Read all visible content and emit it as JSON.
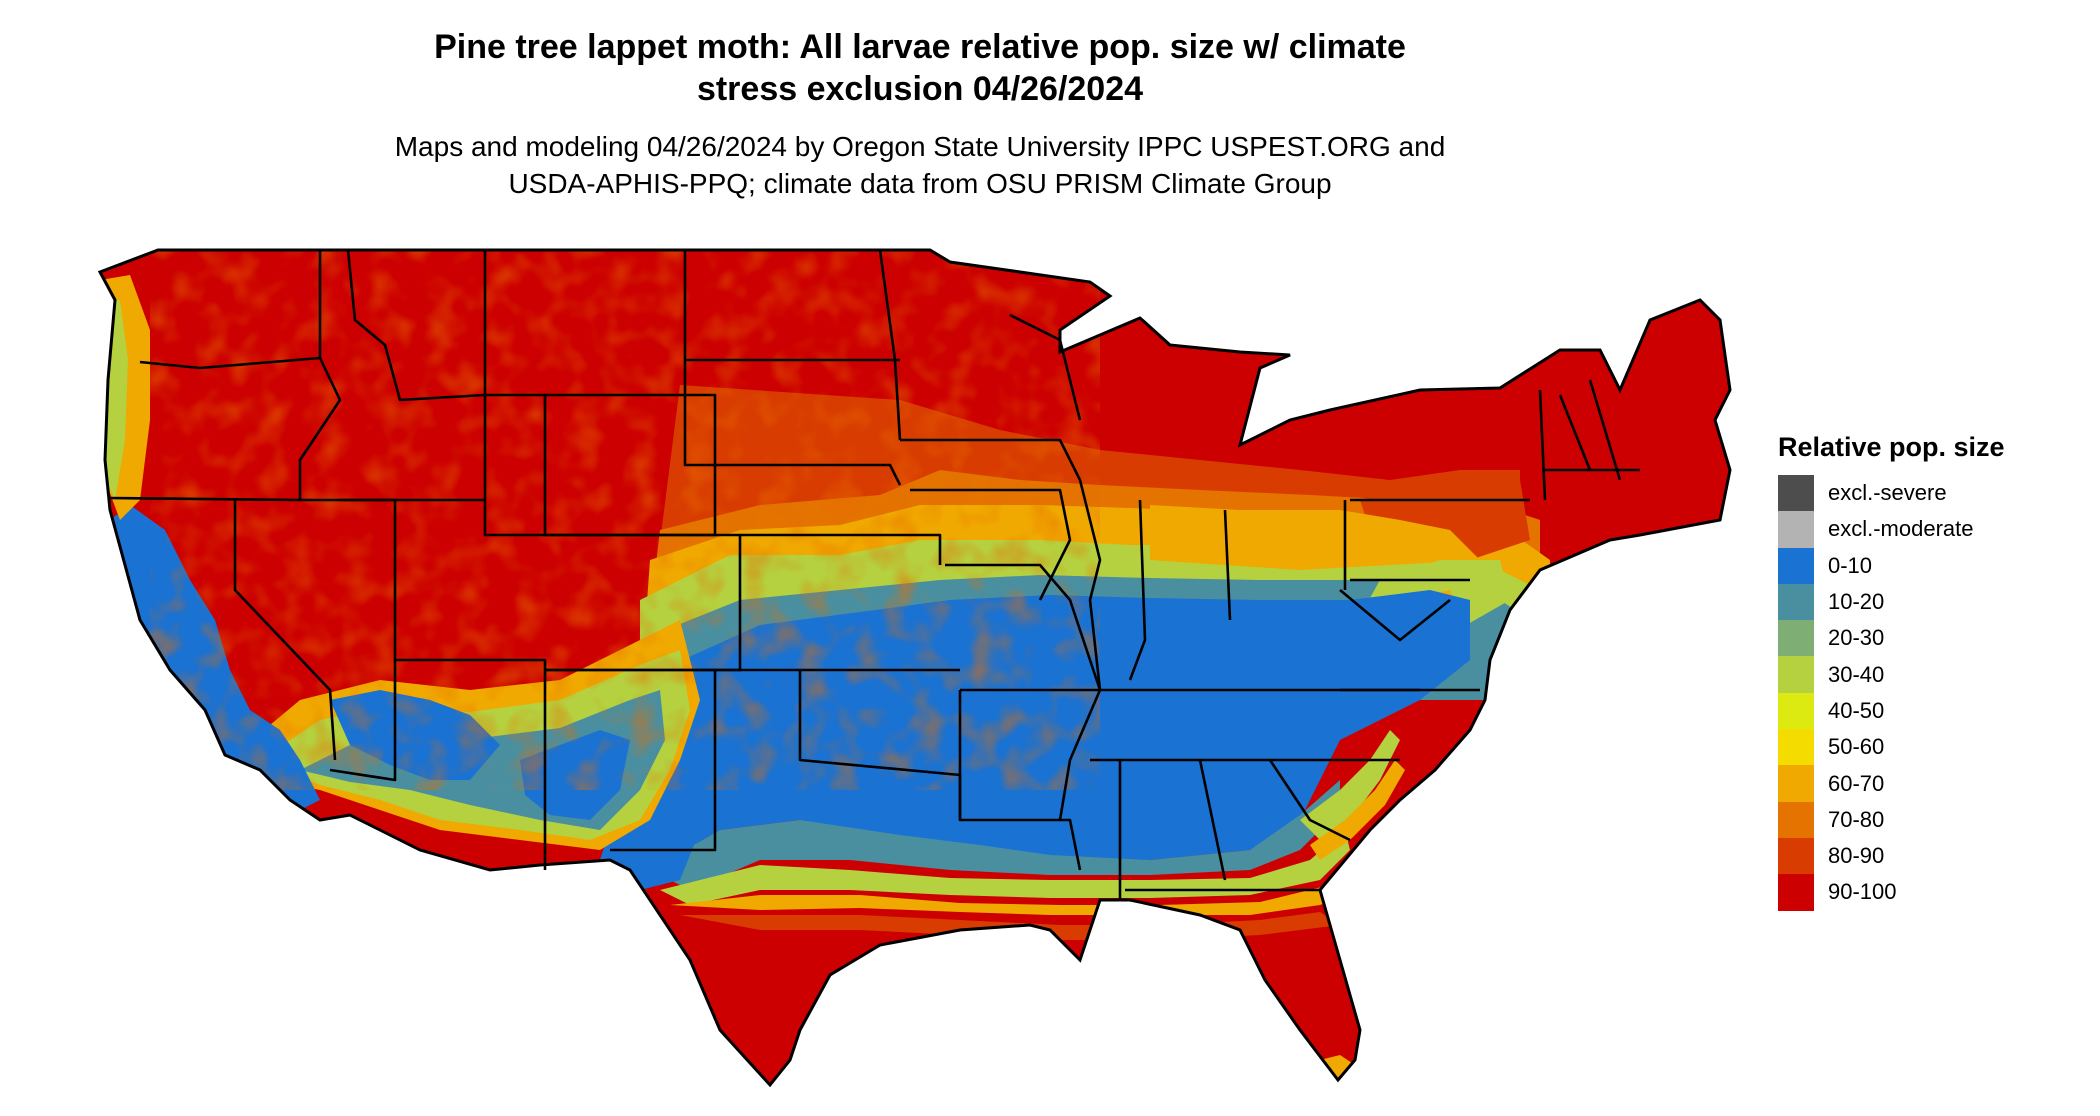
{
  "title": {
    "line1": "Pine tree lappet moth: All larvae relative pop. size w/ climate",
    "line2": "stress exclusion 04/26/2024"
  },
  "subtitle": {
    "line1": "Maps and modeling 04/26/2024 by Oregon State University IPPC USPEST.ORG and",
    "line2": "USDA-APHIS-PPQ; climate data from OSU PRISM Climate Group"
  },
  "legend": {
    "title": "Relative pop. size",
    "items": [
      {
        "label": "excl.-severe",
        "color": "#4d4d4d"
      },
      {
        "label": "excl.-moderate",
        "color": "#b3b3b3"
      },
      {
        "label": "0-10",
        "color": "#1a72d2"
      },
      {
        "label": "10-20",
        "color": "#4a8fa0"
      },
      {
        "label": "20-30",
        "color": "#7fae74"
      },
      {
        "label": "30-40",
        "color": "#b5d13f"
      },
      {
        "label": "40-50",
        "color": "#dcea12"
      },
      {
        "label": "50-60",
        "color": "#f5dc00"
      },
      {
        "label": "60-70",
        "color": "#f0a900"
      },
      {
        "label": "70-80",
        "color": "#e47300"
      },
      {
        "label": "80-90",
        "color": "#d83c00"
      },
      {
        "label": "90-100",
        "color": "#cc0000"
      }
    ]
  }
}
